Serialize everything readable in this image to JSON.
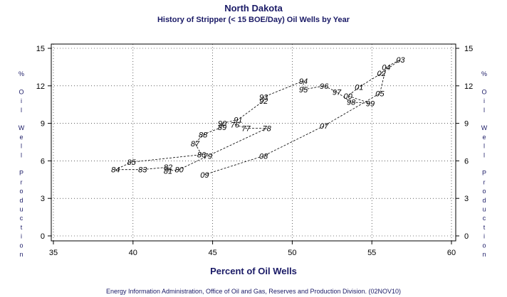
{
  "chart_data": {
    "type": "line",
    "title": "North Dakota",
    "subtitle": "History of Stripper (< 15 BOE/Day) Oil Wells by Year",
    "xlabel": "Percent of Oil Wells",
    "ylabel": "% Oil Well Production",
    "xlim": [
      35,
      60
    ],
    "ylim": [
      0,
      15
    ],
    "xticks": [
      35,
      40,
      45,
      50,
      55,
      60
    ],
    "yticks": [
      0,
      3,
      6,
      9,
      12,
      15
    ],
    "grid": true,
    "series": [
      {
        "points": [
          {
            "label": "76",
            "x": 46.4,
            "y": 8.9
          },
          {
            "label": "77",
            "x": 47.1,
            "y": 8.6
          },
          {
            "label": "78",
            "x": 48.4,
            "y": 8.6
          },
          {
            "label": "79",
            "x": 44.7,
            "y": 6.4
          },
          {
            "label": "80",
            "x": 42.9,
            "y": 5.3
          },
          {
            "label": "81",
            "x": 42.2,
            "y": 5.2
          },
          {
            "label": "82",
            "x": 42.2,
            "y": 5.5
          },
          {
            "label": "83",
            "x": 40.6,
            "y": 5.3
          },
          {
            "label": "84",
            "x": 38.9,
            "y": 5.3
          },
          {
            "label": "85",
            "x": 39.9,
            "y": 5.9
          },
          {
            "label": "86",
            "x": 44.3,
            "y": 6.5
          },
          {
            "label": "87",
            "x": 43.9,
            "y": 7.4
          },
          {
            "label": "88",
            "x": 44.4,
            "y": 8.1
          },
          {
            "label": "89",
            "x": 45.6,
            "y": 8.7
          },
          {
            "label": "90",
            "x": 45.6,
            "y": 9.0
          },
          {
            "label": "91",
            "x": 46.6,
            "y": 9.3
          },
          {
            "label": "92",
            "x": 48.2,
            "y": 10.8
          },
          {
            "label": "93",
            "x": 48.2,
            "y": 11.1
          },
          {
            "label": "94",
            "x": 50.7,
            "y": 12.4
          },
          {
            "label": "95",
            "x": 50.7,
            "y": 11.7
          },
          {
            "label": "96",
            "x": 52.0,
            "y": 12.0
          },
          {
            "label": "97",
            "x": 52.8,
            "y": 11.5
          },
          {
            "label": "98",
            "x": 53.7,
            "y": 10.7
          },
          {
            "label": "99",
            "x": 54.9,
            "y": 10.6
          },
          {
            "label": "00",
            "x": 53.5,
            "y": 11.2
          },
          {
            "label": "01",
            "x": 54.2,
            "y": 11.9
          },
          {
            "label": "02",
            "x": 55.6,
            "y": 13.0
          },
          {
            "label": "03",
            "x": 56.8,
            "y": 14.1
          },
          {
            "label": "04",
            "x": 55.9,
            "y": 13.5
          },
          {
            "label": "05",
            "x": 55.5,
            "y": 11.4
          },
          {
            "label": "07",
            "x": 52.0,
            "y": 8.8
          },
          {
            "label": "08",
            "x": 48.2,
            "y": 6.4
          },
          {
            "label": "09",
            "x": 44.5,
            "y": 4.9
          }
        ]
      }
    ]
  },
  "footer": "Energy Information Administration, Office of Oil and Gas, Reserves and Production Division. (02NOV10)"
}
